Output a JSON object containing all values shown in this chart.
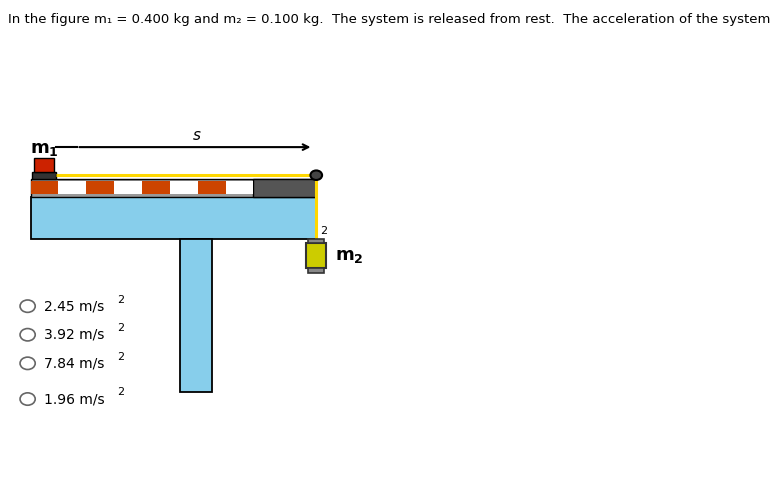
{
  "title": "In the figure m₁ = 0.400 kg and m₂ = 0.100 kg.  The system is released from rest.  The acceleration of the system is",
  "title_fontsize": 9.5,
  "bg_color": "#ffffff",
  "options": [
    "2.45 m/s",
    "3.92 m/s",
    "7.84 m/s",
    "1.96 m/s"
  ],
  "colors": {
    "table_blue": "#87CEEB",
    "table_outline": "#000000",
    "track_gray": "#999999",
    "track_dark": "#555555",
    "orange": "#CC4400",
    "white_stripe": "#ffffff",
    "rope": "#FFD700",
    "mass2_body": "#CCCC00",
    "mass2_cap": "#888888",
    "mass_outline": "#333333",
    "m1_body": "#CC2200",
    "m1_base": "#333333",
    "arrow_color": "#000000",
    "text_color": "#000000",
    "pulley": "#444444"
  },
  "fig_width": 7.72,
  "fig_height": 4.79,
  "dpi": 100
}
